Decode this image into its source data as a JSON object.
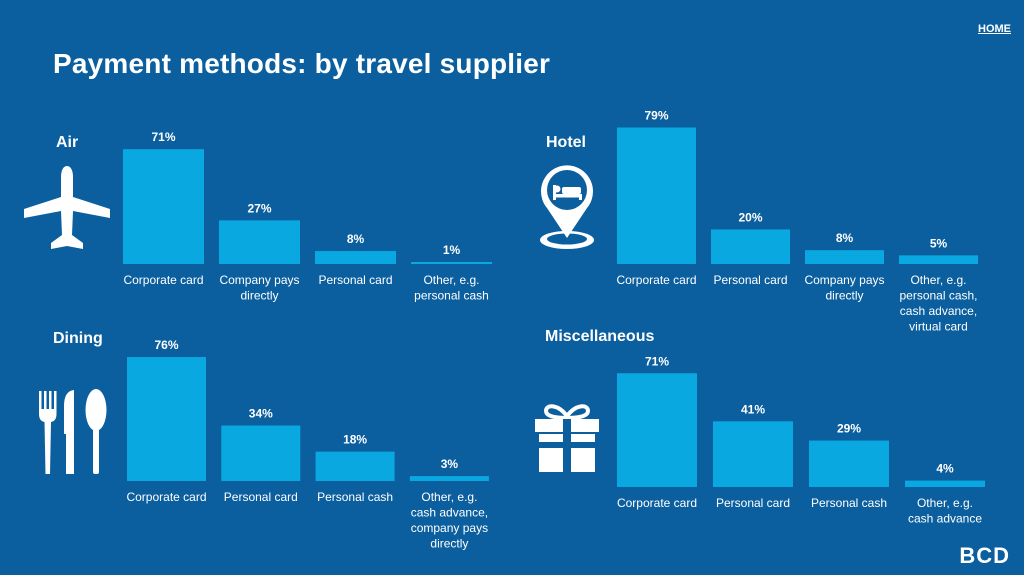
{
  "header": {
    "home_label": "HOME",
    "title": "Payment methods: by travel supplier"
  },
  "logo": {
    "text": "BCD"
  },
  "colors": {
    "background": "#0b5f9f",
    "bar": "#0aa8e0",
    "text": "#ffffff"
  },
  "chart_data": [
    {
      "type": "bar",
      "title": "Air",
      "icon": "airplane-icon",
      "unit": "%",
      "categories": [
        "Corporate card",
        "Company pays directly",
        "Personal card",
        "Other, e.g. personal cash"
      ],
      "values": [
        71,
        27,
        8,
        1
      ],
      "ylim": [
        0,
        100
      ]
    },
    {
      "type": "bar",
      "title": "Hotel",
      "icon": "hotel-bed-pin-icon",
      "unit": "%",
      "categories": [
        "Corporate card",
        "Personal card",
        "Company pays directly",
        "Other, e.g. personal cash, cash advance, virtual card"
      ],
      "values": [
        79,
        20,
        8,
        5
      ],
      "ylim": [
        0,
        100
      ]
    },
    {
      "type": "bar",
      "title": "Dining",
      "icon": "cutlery-icon",
      "unit": "%",
      "categories": [
        "Corporate card",
        "Personal card",
        "Personal cash",
        "Other, e.g. cash advance, company pays directly"
      ],
      "values": [
        76,
        34,
        18,
        3
      ],
      "ylim": [
        0,
        100
      ]
    },
    {
      "type": "bar",
      "title": "Miscellaneous",
      "icon": "gift-icon",
      "unit": "%",
      "categories": [
        "Corporate card",
        "Personal card",
        "Personal cash",
        "Other, e.g. cash advance"
      ],
      "values": [
        71,
        41,
        29,
        4
      ],
      "ylim": [
        0,
        100
      ]
    }
  ]
}
